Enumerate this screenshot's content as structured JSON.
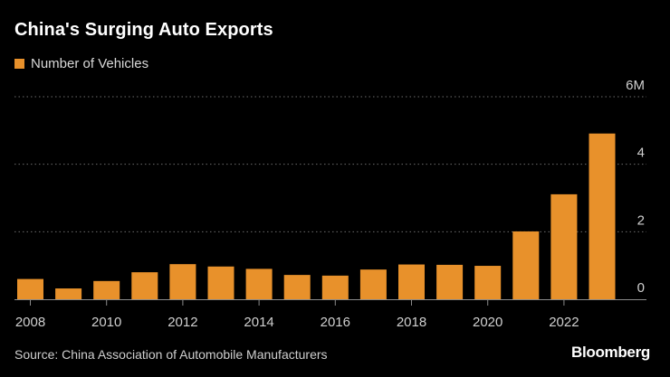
{
  "chart_data": {
    "type": "bar",
    "title": "China's Surging Auto Exports",
    "legend": [
      "Number of Vehicles"
    ],
    "categories": [
      "2008",
      "2009",
      "2010",
      "2011",
      "2012",
      "2013",
      "2014",
      "2015",
      "2016",
      "2017",
      "2018",
      "2019",
      "2020",
      "2021",
      "2022",
      "2023"
    ],
    "values": [
      0.6,
      0.32,
      0.54,
      0.8,
      1.04,
      0.97,
      0.9,
      0.72,
      0.7,
      0.88,
      1.03,
      1.02,
      0.99,
      2.01,
      3.11,
      4.91
    ],
    "x_tick_labels": [
      "2008",
      "2010",
      "2012",
      "2014",
      "2016",
      "2018",
      "2020",
      "2022"
    ],
    "y_tick_labels": [
      "0",
      "2",
      "4",
      "6M"
    ],
    "y_ticks": [
      0,
      2,
      4,
      6
    ],
    "ylim": [
      0,
      6
    ],
    "xlabel": "",
    "ylabel": "",
    "grid": true,
    "legend_position": "top-left",
    "axis_position": "right"
  },
  "colors": {
    "bar": "#e8912b",
    "background": "#000000",
    "grid": "#6b6b6b",
    "axis": "#8a8a8a",
    "tick_text": "#cfcfcf"
  },
  "source": "Source: China Association of Automobile Manufacturers",
  "brand": "Bloomberg"
}
